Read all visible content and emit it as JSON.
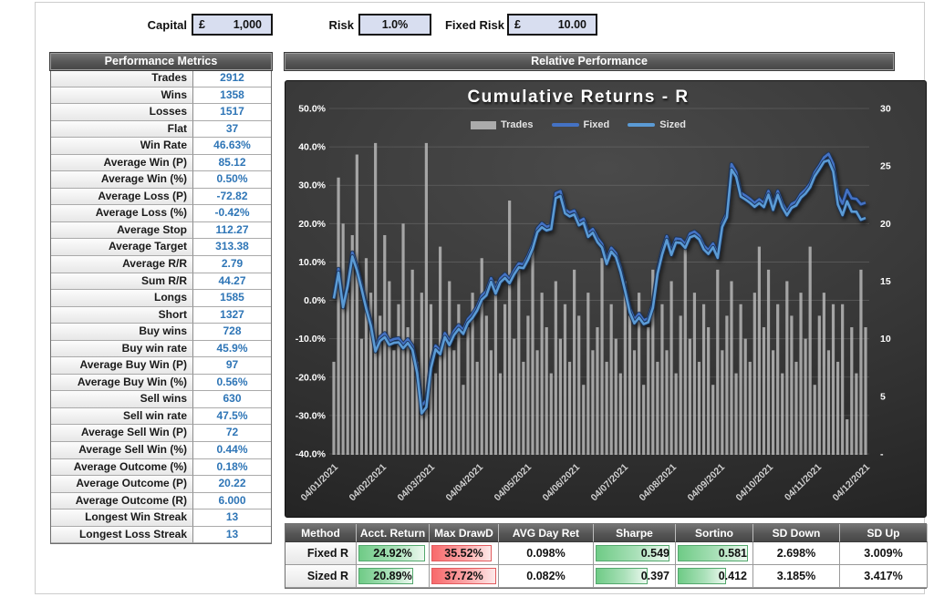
{
  "inputs": {
    "capital": {
      "label": "Capital",
      "currency": "£",
      "value": "1,000"
    },
    "risk": {
      "label": "Risk",
      "value": "1.0%"
    },
    "fixed_risk": {
      "label": "Fixed Risk",
      "currency": "£",
      "value": "10.00"
    }
  },
  "metrics": {
    "title": "Performance Metrics",
    "rows": [
      {
        "label": "Trades",
        "value": "2912"
      },
      {
        "label": "Wins",
        "value": "1358"
      },
      {
        "label": "Losses",
        "value": "1517"
      },
      {
        "label": "Flat",
        "value": "37"
      },
      {
        "label": "Win Rate",
        "value": "46.63%"
      },
      {
        "label": "Average Win (P)",
        "value": "85.12"
      },
      {
        "label": "Average Win (%)",
        "value": "0.50%"
      },
      {
        "label": "Average Loss (P)",
        "value": "-72.82"
      },
      {
        "label": "Average Loss (%)",
        "value": "-0.42%"
      },
      {
        "label": "Average Stop",
        "value": "112.27"
      },
      {
        "label": "Average Target",
        "value": "313.38"
      },
      {
        "label": "Average R/R",
        "value": "2.79"
      },
      {
        "label": "Sum R/R",
        "value": "44.27"
      },
      {
        "label": "Longs",
        "value": "1585"
      },
      {
        "label": "Short",
        "value": "1327"
      },
      {
        "label": "Buy wins",
        "value": "728"
      },
      {
        "label": "Buy win rate",
        "value": "45.9%"
      },
      {
        "label": "Average Buy Win (P)",
        "value": "97"
      },
      {
        "label": "Average Buy Win (%)",
        "value": "0.56%"
      },
      {
        "label": "Sell wins",
        "value": "630"
      },
      {
        "label": "Sell win rate",
        "value": "47.5%"
      },
      {
        "label": "Average Sell Win (P)",
        "value": "72"
      },
      {
        "label": "Average Sell Win (%)",
        "value": "0.44%"
      },
      {
        "label": "Average Outcome (%)",
        "value": "0.18%"
      },
      {
        "label": "Average Outcome (P)",
        "value": "20.22"
      },
      {
        "label": "Average Outcome (R)",
        "value": "6.000"
      },
      {
        "label": "Longest Win Streak",
        "value": "13"
      },
      {
        "label": "Longest Loss Streak",
        "value": "13"
      }
    ]
  },
  "chart_panel": {
    "header": "Relative Performance",
    "title": "Cumulative Returns - R",
    "legend": [
      {
        "label": "Trades",
        "type": "bar",
        "color": "#ABABAB"
      },
      {
        "label": "Fixed",
        "type": "line",
        "color": "#4472C4"
      },
      {
        "label": "Sized",
        "type": "line",
        "color": "#5B9BD5"
      }
    ]
  },
  "chart_data": {
    "type": "combo-bar-line",
    "title": "Cumulative Returns - R",
    "grid": true,
    "left_axis": {
      "ticks": [
        "50.0%",
        "40.0%",
        "30.0%",
        "20.0%",
        "10.0%",
        "0.0%",
        "-10.0%",
        "-20.0%",
        "-30.0%",
        "-40.0%"
      ],
      "max": 50,
      "min": -40,
      "unit": "%"
    },
    "right_axis": {
      "ticks": [
        "30",
        "25",
        "20",
        "15",
        "10",
        "5",
        "-"
      ],
      "max": 30,
      "min": 0
    },
    "x_labels": [
      "04/01/2021",
      "04/02/2021",
      "04/03/2021",
      "04/04/2021",
      "04/05/2021",
      "04/06/2021",
      "04/07/2021",
      "04/08/2021",
      "04/09/2021",
      "04/10/2021",
      "04/11/2021",
      "04/12/2021"
    ],
    "bars": {
      "name": "Trades",
      "axis": "right",
      "color": "#B7B7B7",
      "values": [
        8,
        24,
        20,
        14,
        19,
        26,
        10,
        17,
        14,
        27,
        12,
        19,
        15,
        9,
        13,
        20,
        11,
        16,
        8,
        14,
        27,
        13,
        7,
        18,
        10,
        15,
        9,
        13,
        6,
        11,
        14,
        8,
        17,
        12,
        9,
        15,
        7,
        13,
        22,
        10,
        16,
        8,
        12,
        18,
        9,
        14,
        11,
        7,
        15,
        10,
        13,
        8,
        16,
        12,
        6,
        14,
        9,
        11,
        17,
        8,
        13,
        10,
        7,
        15,
        12,
        9,
        14,
        6,
        11,
        16,
        8,
        13,
        9,
        15,
        7,
        12,
        18,
        10,
        14,
        8,
        13,
        11,
        6,
        16,
        9,
        12,
        15,
        7,
        13,
        10,
        8,
        14,
        18,
        11,
        16,
        9,
        13,
        7,
        15,
        12,
        8,
        14,
        10,
        18,
        6,
        12,
        14,
        9,
        13,
        8,
        13,
        3,
        11,
        7,
        16,
        11
      ]
    },
    "series": [
      {
        "name": "Fixed",
        "axis": "left",
        "color": "#4472C4",
        "keypoints": [
          [
            0,
            0.5
          ],
          [
            0.1,
            8
          ],
          [
            0.22,
            -3
          ],
          [
            0.38,
            13
          ],
          [
            0.5,
            8
          ],
          [
            0.62,
            2
          ],
          [
            0.75,
            -5
          ],
          [
            0.9,
            -13
          ],
          [
            1.05,
            -7.5
          ],
          [
            1.2,
            -12
          ],
          [
            1.32,
            -8.5
          ],
          [
            1.45,
            -12
          ],
          [
            1.58,
            -9
          ],
          [
            1.7,
            -15
          ],
          [
            1.78,
            -20
          ],
          [
            1.88,
            -33.5
          ],
          [
            2.0,
            -17
          ],
          [
            2.08,
            -12
          ],
          [
            2.18,
            -14
          ],
          [
            2.3,
            -8.5
          ],
          [
            2.42,
            -11
          ],
          [
            2.55,
            -6
          ],
          [
            2.68,
            -8
          ],
          [
            2.8,
            -5
          ],
          [
            2.95,
            -2.5
          ],
          [
            3.1,
            1
          ],
          [
            3.25,
            5
          ],
          [
            3.4,
            3.5
          ],
          [
            3.55,
            7
          ],
          [
            3.7,
            5.5
          ],
          [
            3.85,
            10
          ],
          [
            3.95,
            9
          ],
          [
            4.1,
            13
          ],
          [
            4.2,
            16
          ],
          [
            4.32,
            22
          ],
          [
            4.42,
            17.5
          ],
          [
            4.55,
            21
          ],
          [
            4.68,
            31
          ],
          [
            4.78,
            26
          ],
          [
            4.88,
            21.5
          ],
          [
            5.0,
            24.5
          ],
          [
            5.1,
            20
          ],
          [
            5.2,
            22
          ],
          [
            5.32,
            17
          ],
          [
            5.45,
            19
          ],
          [
            5.58,
            14
          ],
          [
            5.7,
            11.5
          ],
          [
            5.85,
            14
          ],
          [
            6.0,
            8
          ],
          [
            6.1,
            2
          ],
          [
            6.2,
            -3
          ],
          [
            6.3,
            -6
          ],
          [
            6.4,
            -2
          ],
          [
            6.5,
            -7
          ],
          [
            6.62,
            -3
          ],
          [
            6.72,
            4
          ],
          [
            6.85,
            14
          ],
          [
            6.95,
            16
          ],
          [
            7.05,
            13
          ],
          [
            7.18,
            17.5
          ],
          [
            7.3,
            14
          ],
          [
            7.42,
            17
          ],
          [
            7.55,
            18.5
          ],
          [
            7.65,
            16
          ],
          [
            7.75,
            13.5
          ],
          [
            7.9,
            14
          ],
          [
            8.0,
            12.5
          ],
          [
            8.1,
            19
          ],
          [
            8.2,
            22.5
          ],
          [
            8.32,
            38
          ],
          [
            8.45,
            30
          ],
          [
            8.55,
            26
          ],
          [
            8.65,
            28.5
          ],
          [
            8.75,
            24
          ],
          [
            8.85,
            27
          ],
          [
            8.95,
            25
          ],
          [
            9.05,
            28
          ],
          [
            9.18,
            25.5
          ],
          [
            9.3,
            28.5
          ],
          [
            9.4,
            24
          ],
          [
            9.5,
            22.5
          ],
          [
            9.6,
            27
          ],
          [
            9.7,
            25
          ],
          [
            9.8,
            30
          ],
          [
            9.9,
            28.5
          ],
          [
            10.0,
            32
          ],
          [
            10.1,
            36
          ],
          [
            10.2,
            34.5
          ],
          [
            10.3,
            40.5
          ],
          [
            10.42,
            35
          ],
          [
            10.52,
            28
          ],
          [
            10.62,
            25
          ],
          [
            10.72,
            29
          ],
          [
            10.82,
            26.5
          ],
          [
            10.88,
            27.5
          ],
          [
            10.95,
            24
          ],
          [
            11.02,
            26
          ],
          [
            11.1,
            24.9
          ]
        ]
      },
      {
        "name": "Sized",
        "axis": "left",
        "color": "#5B9BD5",
        "keypoints": [
          [
            0,
            0.5
          ],
          [
            0.1,
            7
          ],
          [
            0.22,
            -3.5
          ],
          [
            0.38,
            12
          ],
          [
            0.5,
            7
          ],
          [
            0.62,
            1
          ],
          [
            0.75,
            -6
          ],
          [
            0.9,
            -14
          ],
          [
            1.05,
            -8.5
          ],
          [
            1.2,
            -13
          ],
          [
            1.32,
            -9.5
          ],
          [
            1.45,
            -13
          ],
          [
            1.58,
            -10
          ],
          [
            1.7,
            -16
          ],
          [
            1.78,
            -22
          ],
          [
            1.88,
            -35.5
          ],
          [
            2.0,
            -18.5
          ],
          [
            2.08,
            -13
          ],
          [
            2.18,
            -15
          ],
          [
            2.3,
            -9.5
          ],
          [
            2.42,
            -12
          ],
          [
            2.55,
            -7
          ],
          [
            2.68,
            -9
          ],
          [
            2.8,
            -6
          ],
          [
            2.95,
            -3.5
          ],
          [
            3.1,
            0
          ],
          [
            3.25,
            4
          ],
          [
            3.4,
            2.5
          ],
          [
            3.55,
            6
          ],
          [
            3.7,
            4.5
          ],
          [
            3.85,
            9
          ],
          [
            3.95,
            8
          ],
          [
            4.1,
            12
          ],
          [
            4.2,
            15
          ],
          [
            4.32,
            21
          ],
          [
            4.42,
            16.5
          ],
          [
            4.55,
            20
          ],
          [
            4.68,
            29.5
          ],
          [
            4.78,
            25
          ],
          [
            4.88,
            20.5
          ],
          [
            5.0,
            23.5
          ],
          [
            5.1,
            19
          ],
          [
            5.2,
            21
          ],
          [
            5.32,
            16
          ],
          [
            5.45,
            18
          ],
          [
            5.58,
            13
          ],
          [
            5.7,
            10.5
          ],
          [
            5.85,
            13
          ],
          [
            6.0,
            7
          ],
          [
            6.1,
            1
          ],
          [
            6.2,
            -4
          ],
          [
            6.3,
            -7
          ],
          [
            6.4,
            -3
          ],
          [
            6.5,
            -8
          ],
          [
            6.62,
            -4
          ],
          [
            6.72,
            3
          ],
          [
            6.85,
            13
          ],
          [
            6.95,
            15
          ],
          [
            7.05,
            12
          ],
          [
            7.18,
            16.5
          ],
          [
            7.3,
            13
          ],
          [
            7.42,
            16
          ],
          [
            7.55,
            17.5
          ],
          [
            7.65,
            15
          ],
          [
            7.75,
            12.5
          ],
          [
            7.9,
            13
          ],
          [
            8.0,
            11.5
          ],
          [
            8.1,
            18
          ],
          [
            8.2,
            21.5
          ],
          [
            8.32,
            36.5
          ],
          [
            8.45,
            29
          ],
          [
            8.55,
            25
          ],
          [
            8.65,
            27.5
          ],
          [
            8.75,
            23
          ],
          [
            8.85,
            26
          ],
          [
            8.95,
            24
          ],
          [
            9.05,
            27
          ],
          [
            9.18,
            24.5
          ],
          [
            9.3,
            27.5
          ],
          [
            9.4,
            23
          ],
          [
            9.5,
            21.5
          ],
          [
            9.6,
            26
          ],
          [
            9.7,
            24
          ],
          [
            9.8,
            29
          ],
          [
            9.9,
            27.5
          ],
          [
            10.0,
            31
          ],
          [
            10.1,
            35
          ],
          [
            10.2,
            33.5
          ],
          [
            10.3,
            39
          ],
          [
            10.42,
            33
          ],
          [
            10.52,
            25.5
          ],
          [
            10.62,
            22
          ],
          [
            10.72,
            26
          ],
          [
            10.82,
            23
          ],
          [
            10.88,
            24.5
          ],
          [
            10.95,
            20
          ],
          [
            11.02,
            22
          ],
          [
            11.1,
            20.9
          ]
        ]
      }
    ]
  },
  "results_table": {
    "headers": [
      "Method",
      "Acct. Return",
      "Max DrawD",
      "AVG Day Ret",
      "Sharpe",
      "Sortino",
      "SD Down",
      "SD Up"
    ],
    "rows": [
      {
        "method": "Fixed R",
        "acct_return": "24.92%",
        "max_drawd": "35.52%",
        "avg_day_ret": "0.098%",
        "sharpe": "0.549",
        "sortino": "0.581",
        "sd_down": "2.698%",
        "sd_up": "3.009%"
      },
      {
        "method": "Sized R",
        "acct_return": "20.89%",
        "max_drawd": "37.72%",
        "avg_day_ret": "0.082%",
        "sharpe": "0.397",
        "sortino": "0.412",
        "sd_down": "3.185%",
        "sd_up": "3.417%"
      }
    ],
    "bar_widths": {
      "acct_return": [
        97,
        81
      ],
      "max_drawd": [
        93,
        100
      ],
      "sharpe": [
        95,
        69
      ],
      "sortino": [
        96,
        68
      ]
    },
    "bar_colors": {
      "acct_return": "green",
      "max_drawd": "red",
      "sharpe": "green",
      "sortino": "green"
    }
  },
  "colors": {
    "value_blue": "#2E75B6",
    "input_fill": "#D8DEF0",
    "header_gray": "#565656",
    "chart_bg": "#2e2e2e",
    "bars_gray": "#B7B7B7",
    "fixed_line": "#4472C4",
    "sized_line": "#5B9BD5",
    "databar_green": "#6FCB86",
    "databar_red": "#F8696B"
  }
}
